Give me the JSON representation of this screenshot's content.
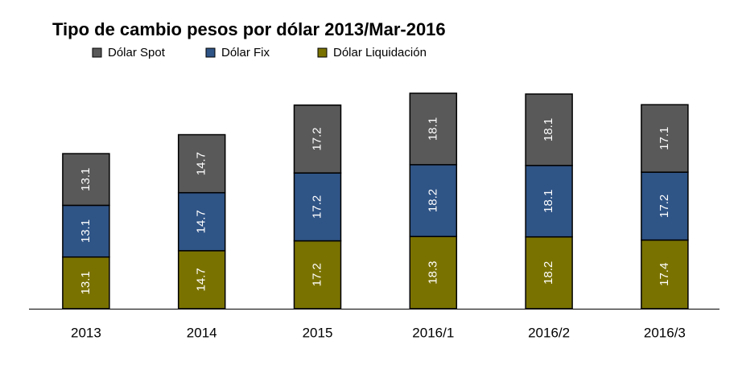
{
  "chart_data": {
    "type": "stacked-bar",
    "title": "Tipo de cambio pesos por dólar 2013/Mar-2016",
    "categories": [
      "2013",
      "2014",
      "2015",
      "2016/1",
      "2016/2",
      "2016/3"
    ],
    "series": [
      {
        "name": "Dólar Spot",
        "color": "#595959",
        "values": [
          13.1,
          14.7,
          17.2,
          18.1,
          18.1,
          17.1
        ]
      },
      {
        "name": "Dólar Fix",
        "color": "#2f5486",
        "values": [
          13.1,
          14.7,
          17.2,
          18.2,
          18.1,
          17.2
        ]
      },
      {
        "name": "Dólar Liquidación",
        "color": "#7a7200",
        "values": [
          13.1,
          14.7,
          17.2,
          18.3,
          18.2,
          17.4
        ]
      }
    ]
  }
}
